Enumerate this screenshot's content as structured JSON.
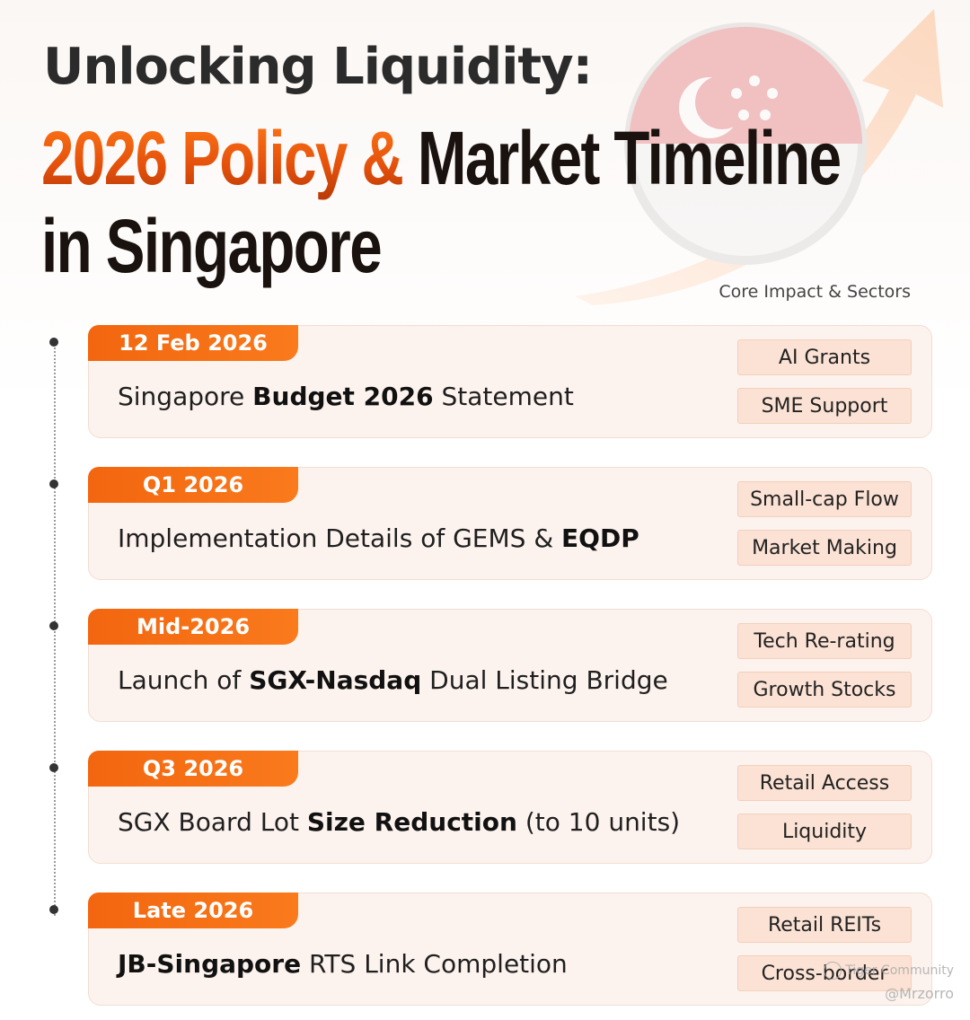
{
  "title": {
    "line1": "Unlocking Liquidity:",
    "line2_orange": "2026 Policy & ",
    "line2_dark": "Market Timeline",
    "line3": "in Singapore"
  },
  "column_header": "Core Impact & Sectors",
  "timeline": [
    {
      "date": "12 Feb 2026",
      "event_pre": "Singapore ",
      "event_bold": "Budget 2026",
      "event_post": " Statement",
      "tags": [
        "AI Grants",
        "SME Support"
      ]
    },
    {
      "date": "Q1 2026",
      "event_pre": "Implementation Details of GEMS & ",
      "event_bold": "EQDP",
      "event_post": "",
      "tags": [
        "Small-cap Flow",
        "Market Making"
      ]
    },
    {
      "date": "Mid-2026",
      "event_pre": "Launch of ",
      "event_bold": "SGX-Nasdaq",
      "event_post": " Dual Listing Bridge",
      "tags": [
        "Tech Re-rating",
        "Growth Stocks"
      ]
    },
    {
      "date": "Q3 2026",
      "event_pre": "SGX Board Lot ",
      "event_bold": "Size Reduction",
      "event_post": " (to 10 units)",
      "tags": [
        "Retail Access",
        "Liquidity"
      ]
    },
    {
      "date": "Late 2026",
      "event_pre": "",
      "event_bold": "JB-Singapore",
      "event_post": " RTS Link Completion",
      "tags": [
        "Retail REITs",
        "Cross-border"
      ]
    }
  ],
  "watermark": {
    "brand": "Tiger Community",
    "handle": "@Mrzorro"
  },
  "colors": {
    "accent": "#f2660f",
    "card_bg": "#fdf3ee",
    "tag_bg": "#fbe2d4"
  }
}
